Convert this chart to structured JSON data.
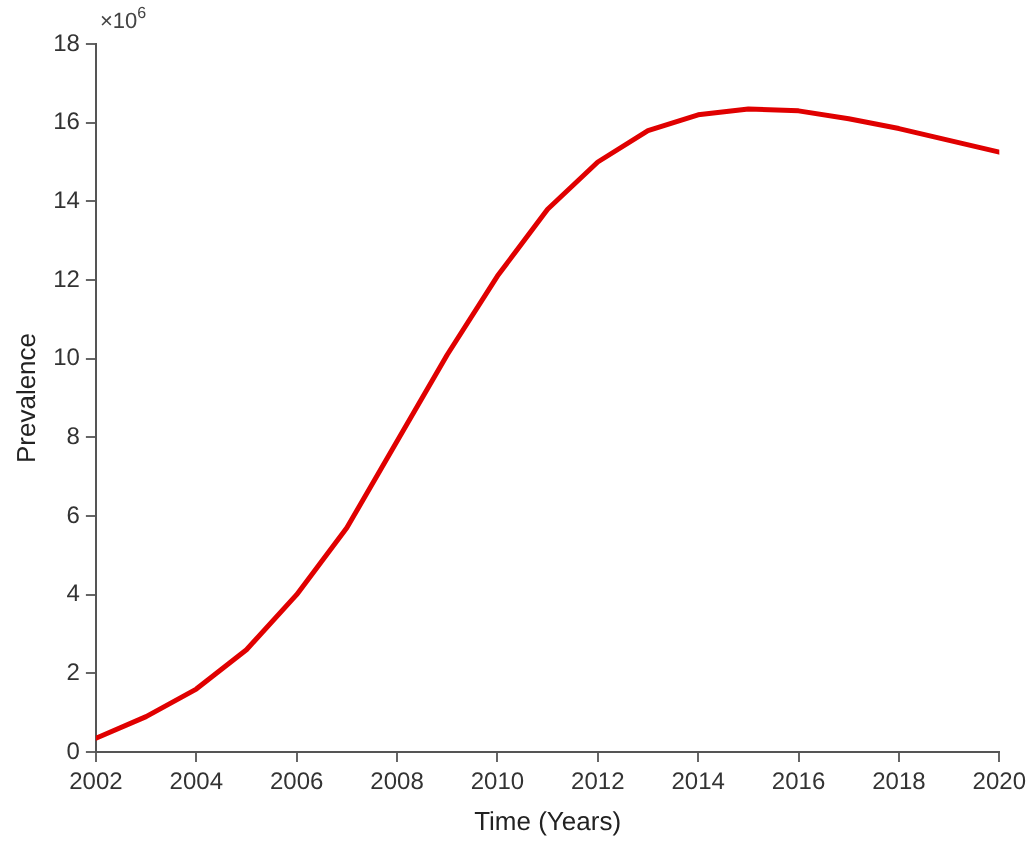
{
  "chart_data": {
    "type": "line",
    "xlabel": "Time (Years)",
    "ylabel": "Prevalence",
    "annotations": [
      "×10$^{6}$"
    ],
    "x": [
      2002,
      2003,
      2004,
      2005,
      2006,
      2007,
      2008,
      2009,
      2010,
      2011,
      2012,
      2013,
      2014,
      2015,
      2016,
      2017,
      2018,
      2019,
      2020
    ],
    "series": [
      {
        "color": "#e00000",
        "values": [
          0.35,
          0.9,
          1.6,
          2.6,
          4.0,
          5.7,
          7.9,
          10.1,
          12.1,
          13.8,
          15.0,
          15.8,
          16.2,
          16.35,
          16.3,
          16.1,
          15.85,
          15.55,
          15.25
        ]
      }
    ],
    "xlim": [
      2002,
      2020
    ],
    "xticks": [
      2002,
      2004,
      2006,
      2008,
      2010,
      2012,
      2014,
      2016,
      2018,
      2020
    ],
    "ylim": [
      0,
      18
    ],
    "yticks": [
      0,
      2,
      4,
      6,
      8,
      10,
      12,
      14,
      16,
      18
    ],
    "grid": false,
    "legend": false,
    "marker": "none",
    "line_style": "solid"
  }
}
